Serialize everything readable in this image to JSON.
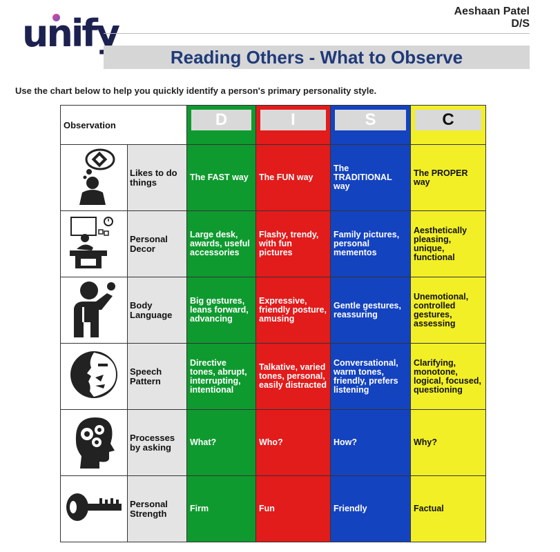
{
  "header": {
    "logo_text": "unify",
    "person_name": "Aeshaan Patel",
    "person_code": "D/S",
    "title": "Reading Others - What to Observe"
  },
  "intro": "Use the chart below to help you quickly identify a person's primary personality style.",
  "table": {
    "observation_header": "Observation",
    "columns": [
      {
        "letter": "D",
        "color": "#0f9a2f"
      },
      {
        "letter": "I",
        "color": "#e21b1b"
      },
      {
        "letter": "S",
        "color": "#1443c0"
      },
      {
        "letter": "C",
        "color": "#f2ef27"
      }
    ],
    "rows": [
      {
        "icon": "thinking-person-icon",
        "label": "Likes to do things",
        "d": "The FAST way",
        "i": "The FUN way",
        "s": "The TRADITIONAL way",
        "c": "The PROPER way"
      },
      {
        "icon": "desk-decor-icon",
        "label": "Personal Decor",
        "d": "Large desk, awards, useful accessories",
        "i": "Flashy, trendy, with fun pictures",
        "s": "Family pictures, personal mementos",
        "c": "Aesthetically pleasing, unique, functional"
      },
      {
        "icon": "body-gesture-icon",
        "label": "Body Language",
        "d": "Big gestures, leans forward, advancing",
        "i": "Expressive, friendly posture, amusing",
        "s": "Gentle gestures, reassuring",
        "c": "Unemotional, controlled gestures, assessing"
      },
      {
        "icon": "speech-face-icon",
        "label": "Speech Pattern",
        "d": "Directive tones, abrupt, interrupting, intentional",
        "i": "Talkative, varied tones, personal, easily distracted",
        "s": "Conversational, warm tones, friendly, prefers listening",
        "c": "Clarifying, monotone, logical, focused, questioning"
      },
      {
        "icon": "head-gears-icon",
        "label": "Processes by asking",
        "d": "What?",
        "i": "Who?",
        "s": "How?",
        "c": "Why?"
      },
      {
        "icon": "key-icon",
        "label": "Personal Strength",
        "d": "Firm",
        "i": "Fun",
        "s": "Friendly",
        "c": "Factual"
      }
    ]
  }
}
